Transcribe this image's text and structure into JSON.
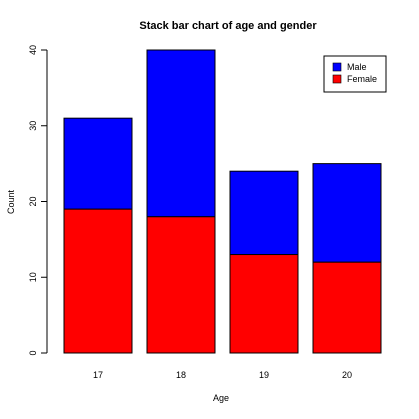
{
  "chart_data": {
    "type": "bar",
    "stacked": true,
    "title": "Stack bar chart of age and gender",
    "xlabel": "Age",
    "ylabel": "Count",
    "categories": [
      "17",
      "18",
      "19",
      "20"
    ],
    "series": [
      {
        "name": "Female",
        "values": [
          19,
          18,
          13,
          12
        ],
        "color": "#ff0000"
      },
      {
        "name": "Male",
        "values": [
          12,
          22,
          11,
          13
        ],
        "color": "#0000ff"
      }
    ],
    "totals": [
      31,
      40,
      24,
      25
    ],
    "ylim": [
      0,
      40
    ],
    "yticks": [
      0,
      10,
      20,
      30,
      40
    ],
    "grid": false,
    "legend": {
      "position": "top-right",
      "entries": [
        "Male",
        "Female"
      ]
    }
  }
}
